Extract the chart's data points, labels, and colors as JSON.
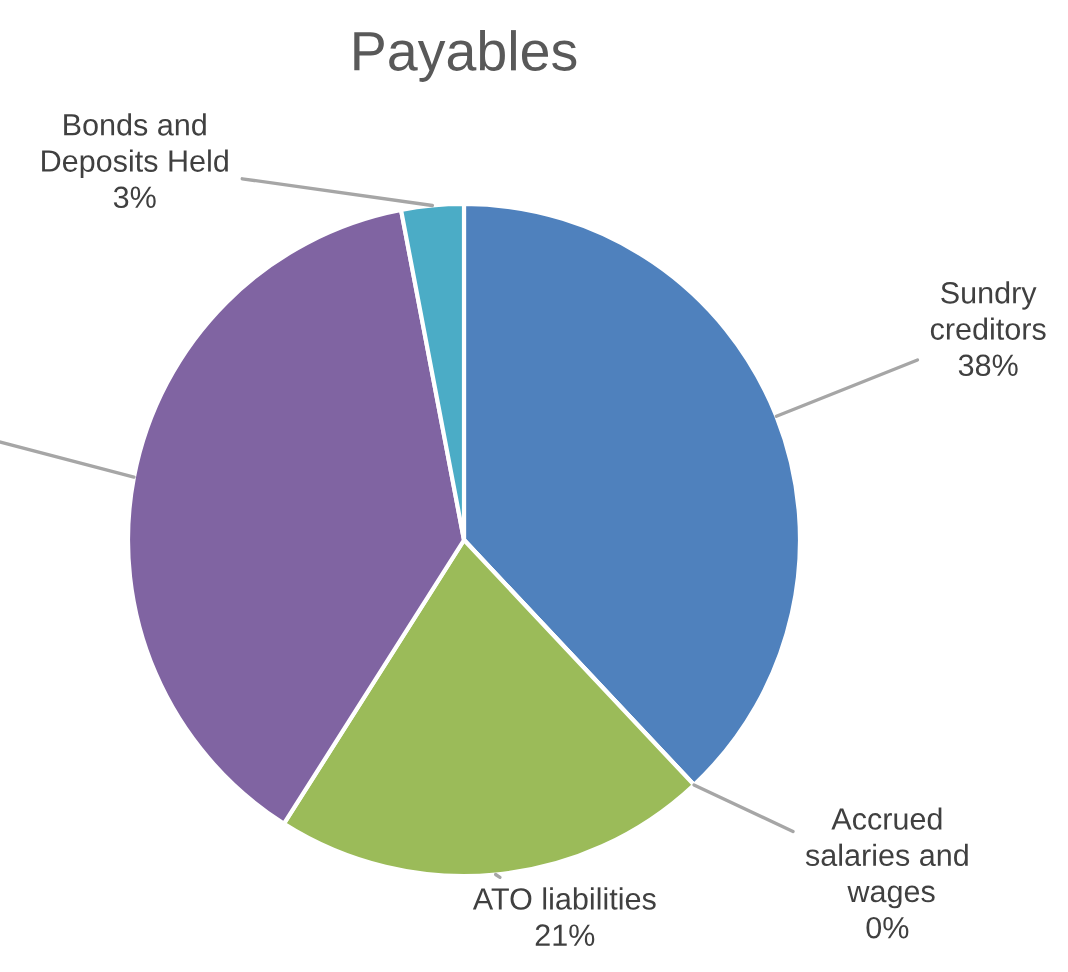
{
  "chart_data": {
    "type": "pie",
    "title": "Payables",
    "categories": [
      "Sundry creditors",
      "Accrued salaries and wages",
      "ATO liabilities",
      null,
      "Bonds and Deposits Held"
    ],
    "values": [
      38,
      0,
      21,
      38,
      3
    ],
    "value_labels": [
      "38%",
      "0%",
      "21%",
      null,
      "3%"
    ],
    "colors": [
      "#4f81bd",
      "#f79646",
      "#9bbb59",
      "#8064a2",
      "#4bacc6"
    ]
  }
}
